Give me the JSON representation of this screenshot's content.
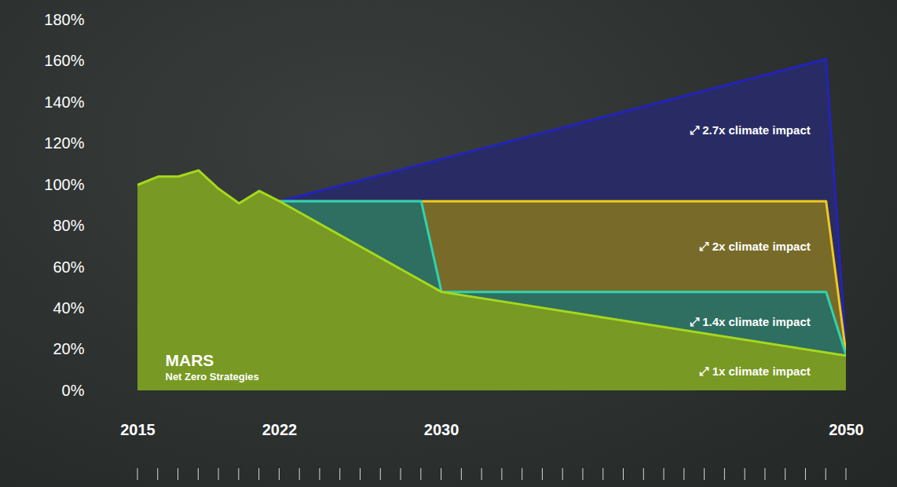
{
  "chart_data": {
    "type": "area",
    "title": "MARS",
    "subtitle": "Net Zero Strategies",
    "xlim": [
      2015,
      2050
    ],
    "xticks": [
      2015,
      2022,
      2030,
      2050
    ],
    "ylim": [
      0,
      180
    ],
    "yticks": [
      {
        "value": 0,
        "label": "0%"
      },
      {
        "value": 20,
        "label": "20%"
      },
      {
        "value": 40,
        "label": "40%"
      },
      {
        "value": 60,
        "label": "60%"
      },
      {
        "value": 80,
        "label": "80%"
      },
      {
        "value": 100,
        "label": "100%"
      },
      {
        "value": 120,
        "label": "120%"
      },
      {
        "value": 140,
        "label": "140%"
      },
      {
        "value": 160,
        "label": "160%"
      },
      {
        "value": 180,
        "label": "180%"
      }
    ],
    "grid": false,
    "stacked": false,
    "series": [
      {
        "name": "⤢ 2.7x climate impact",
        "color": "#2323b8",
        "x": [
          2022,
          2049,
          2050
        ],
        "values": [
          92,
          161,
          17
        ]
      },
      {
        "name": "⤢ 2x climate impact",
        "color": "#f2c81c",
        "x": [
          2022,
          2049,
          2050
        ],
        "values": [
          92,
          92,
          17
        ]
      },
      {
        "name": "⤢ 1.4x climate impact",
        "color": "#2fd3b0",
        "x": [
          2022,
          2029,
          2030,
          2049,
          2050
        ],
        "values": [
          92,
          92,
          48,
          48,
          17
        ]
      },
      {
        "name": "⤢ 1x climate impact",
        "color": "#a6d81c",
        "x": [
          2015,
          2016,
          2017,
          2018,
          2019,
          2020,
          2021,
          2022,
          2030,
          2050
        ],
        "values": [
          100,
          104,
          104,
          107,
          98,
          91,
          97,
          92,
          48,
          17
        ]
      }
    ]
  }
}
